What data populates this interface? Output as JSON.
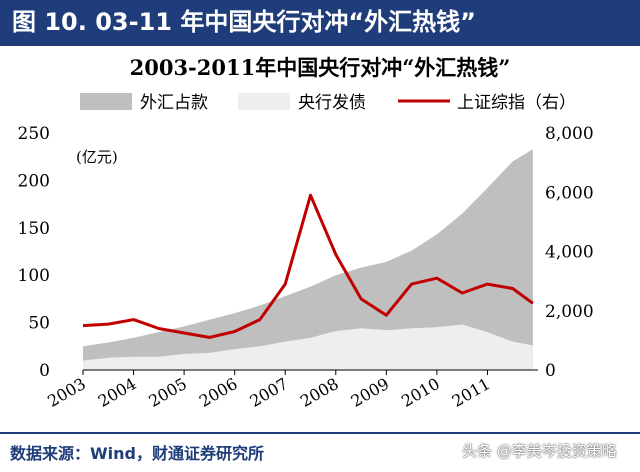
{
  "header": {
    "title": "图 10. 03-11 年中国央行对冲“外汇热钱”"
  },
  "footer": {
    "source": "数据来源：Wind，财通证券研究所"
  },
  "watermark": {
    "text": "头条 @李美岑投资策略"
  },
  "colors": {
    "header_bg": "#1f3d7a",
    "fx": "#bfbfbf",
    "cb": "#eeeeee",
    "index": "#c00000"
  },
  "chart_data": {
    "type": "area",
    "title": "2003-2011年中国央行对冲“外汇热钱”",
    "left_unit": "(亿元)",
    "legend_position": "top",
    "x": [
      2003.0,
      2003.5,
      2004.0,
      2004.5,
      2005.0,
      2005.5,
      2006.0,
      2006.5,
      2007.0,
      2007.5,
      2008.0,
      2008.5,
      2009.0,
      2009.5,
      2010.0,
      2010.5,
      2011.0,
      2011.5,
      2011.9
    ],
    "xlim": [
      2003.0,
      2012.0
    ],
    "x_ticks": [
      "2003",
      "2004",
      "2005",
      "2006",
      "2007",
      "2008",
      "2009",
      "2010",
      "2011"
    ],
    "y_left": {
      "lim": [
        0,
        250
      ],
      "ticks": [
        "0",
        "50",
        "100",
        "150",
        "200",
        "250"
      ]
    },
    "y_right": {
      "lim": [
        0,
        8000
      ],
      "ticks": [
        "0",
        "2,000",
        "4,000",
        "6,000",
        "8,000"
      ]
    },
    "series": [
      {
        "name": "外汇占款",
        "axis": "left",
        "style": "area",
        "values": [
          25,
          29,
          34,
          40,
          46,
          53,
          60,
          68,
          78,
          88,
          100,
          108,
          114,
          126,
          143,
          165,
          192,
          220,
          233
        ]
      },
      {
        "name": "央行发债",
        "axis": "left",
        "style": "area",
        "values": [
          10,
          13,
          14,
          14,
          17,
          18,
          22,
          25,
          30,
          34,
          41,
          44,
          42,
          44,
          45,
          48,
          40,
          30,
          26
        ]
      },
      {
        "name": "上证综指（右）",
        "axis": "right",
        "style": "line",
        "values": [
          1500,
          1550,
          1700,
          1400,
          1250,
          1100,
          1300,
          1700,
          2900,
          5900,
          3900,
          2400,
          1850,
          2900,
          3100,
          2600,
          2900,
          2750,
          2250
        ]
      }
    ]
  }
}
